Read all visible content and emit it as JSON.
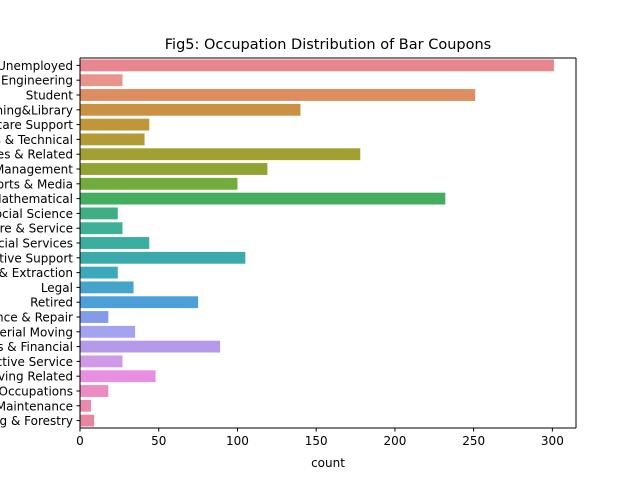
{
  "chart_data": {
    "type": "bar",
    "orientation": "horizontal",
    "title": "Fig5: Occupation Distribution of Bar Coupons",
    "xlabel": "count",
    "ylabel": "",
    "xlim": [
      0,
      315
    ],
    "xticks": [
      0,
      50,
      100,
      150,
      200,
      250,
      300
    ],
    "grid": false,
    "categories": [
      "Unemployed",
      "Architecture & Engineering",
      "Student",
      "Education&Training&Library",
      "Healthcare Support",
      "Healthcare Practitioners & Technical",
      "Sales & Related",
      "Management",
      "Arts Design Entertainment Sports & Media",
      "Computer & Mathematical",
      "Life Physical Social Science",
      "Personal Care & Service",
      "Community & Social Services",
      "Office & Administrative Support",
      "Construction & Extraction",
      "Legal",
      "Retired",
      "Installation Maintenance & Repair",
      "Transportation & Material Moving",
      "Business & Financial",
      "Protective Service",
      "Food Preparation & Serving Related",
      "Production Occupations",
      "Building & Grounds Cleaning & Maintenance",
      "Farming Fishing & Forestry"
    ],
    "tick_labels": [
      "Unemployed",
      "Architecture & Engineering",
      "Student",
      "Education&Training&Library",
      "Healthcare Support",
      "Healthcare Practitioners & Technical",
      "Sales & Related",
      "Management",
      "Arts Design Entertainment Sports & Media",
      "Computer & Mathematical",
      "Life Physical Social Science",
      "Personal Care & Service",
      "Community & Social Services",
      "Office & Administrative Support",
      "Construction & Extraction",
      "Legal",
      "Retired",
      "Installation Maintenance & Repair",
      "Transportation & Material Moving",
      "Business & Financial",
      "Protective Service",
      "Food Preparation & Serving Related",
      "Production Occupations",
      "Building & Grounds Cleaning & Maintenance",
      "Farming Fishing & Forestry"
    ],
    "values": [
      301,
      27,
      251,
      140,
      44,
      41,
      178,
      119,
      100,
      232,
      24,
      27,
      44,
      105,
      24,
      34,
      75,
      18,
      35,
      89,
      27,
      48,
      18,
      7,
      9
    ],
    "colors": [
      "#e8868f",
      "#e8948c",
      "#dd8e61",
      "#c99141",
      "#c0963a",
      "#b39a36",
      "#a3a032",
      "#91a431",
      "#72ac3d",
      "#45ad5f",
      "#3eaf85",
      "#3eb096",
      "#3aae9f",
      "#3aaaad",
      "#3ba8bb",
      "#44a4c9",
      "#4c9fd9",
      "#829ce9",
      "#a5a3ef",
      "#b49ae9",
      "#cf9aea",
      "#e88fe1",
      "#ec8cc1",
      "#eb8aaf",
      "#e8869f"
    ]
  }
}
